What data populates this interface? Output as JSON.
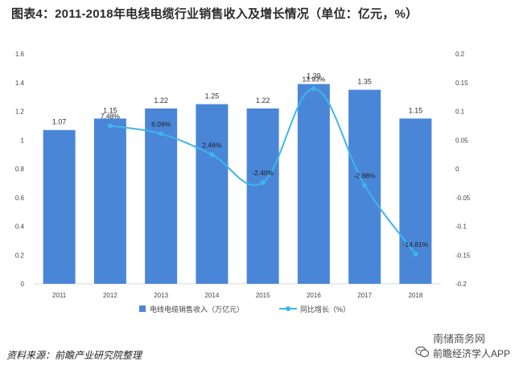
{
  "title": "图表4：2011-2018年电线电缆行业销售收入及增长情况（单位：亿元，%）",
  "source": "资料来源：前瞻产业研究院整理",
  "watermark": {
    "line1": "南储商务网",
    "line2": "前瞻经济学人APP"
  },
  "colors": {
    "bar": "#4a86d8",
    "line": "#3fb6e8",
    "axis": "#d9d9d9",
    "text": "#444444"
  },
  "chart_data": {
    "type": "bar",
    "categories": [
      "2011",
      "2012",
      "2013",
      "2014",
      "2015",
      "2016",
      "2017",
      "2018"
    ],
    "series": [
      {
        "name": "电线电缆销售收入（万亿元）",
        "type": "bar",
        "axis": "left",
        "values": [
          1.07,
          1.15,
          1.22,
          1.25,
          1.22,
          1.39,
          1.35,
          1.15
        ],
        "labels": [
          "1.07",
          "1.15",
          "1.22",
          "1.25",
          "1.22",
          "1.39",
          "1.35",
          "1.15"
        ]
      },
      {
        "name": "同比增长（%）",
        "type": "line",
        "axis": "right",
        "values": [
          null,
          0.0748,
          0.0609,
          0.0246,
          -0.024,
          0.1393,
          -0.0288,
          -0.1481
        ],
        "labels": [
          "",
          "7.48%",
          "6.09%",
          "2.46%",
          "-2.40%",
          "13.93%",
          "-2.88%",
          "-14.81%"
        ]
      }
    ],
    "y_left": {
      "min": 0,
      "max": 1.6,
      "ticks": [
        "0",
        "0.2",
        "0.4",
        "0.6",
        "0.8",
        "1",
        "1.2",
        "1.4",
        "1.6"
      ]
    },
    "y_right": {
      "min": -0.2,
      "max": 0.2,
      "ticks": [
        "-0.2",
        "-0.15",
        "-0.1",
        "-0.05",
        "0",
        "0.05",
        "0.1",
        "0.15",
        "0.2"
      ]
    },
    "legend": "bottom-center",
    "grid": false
  }
}
